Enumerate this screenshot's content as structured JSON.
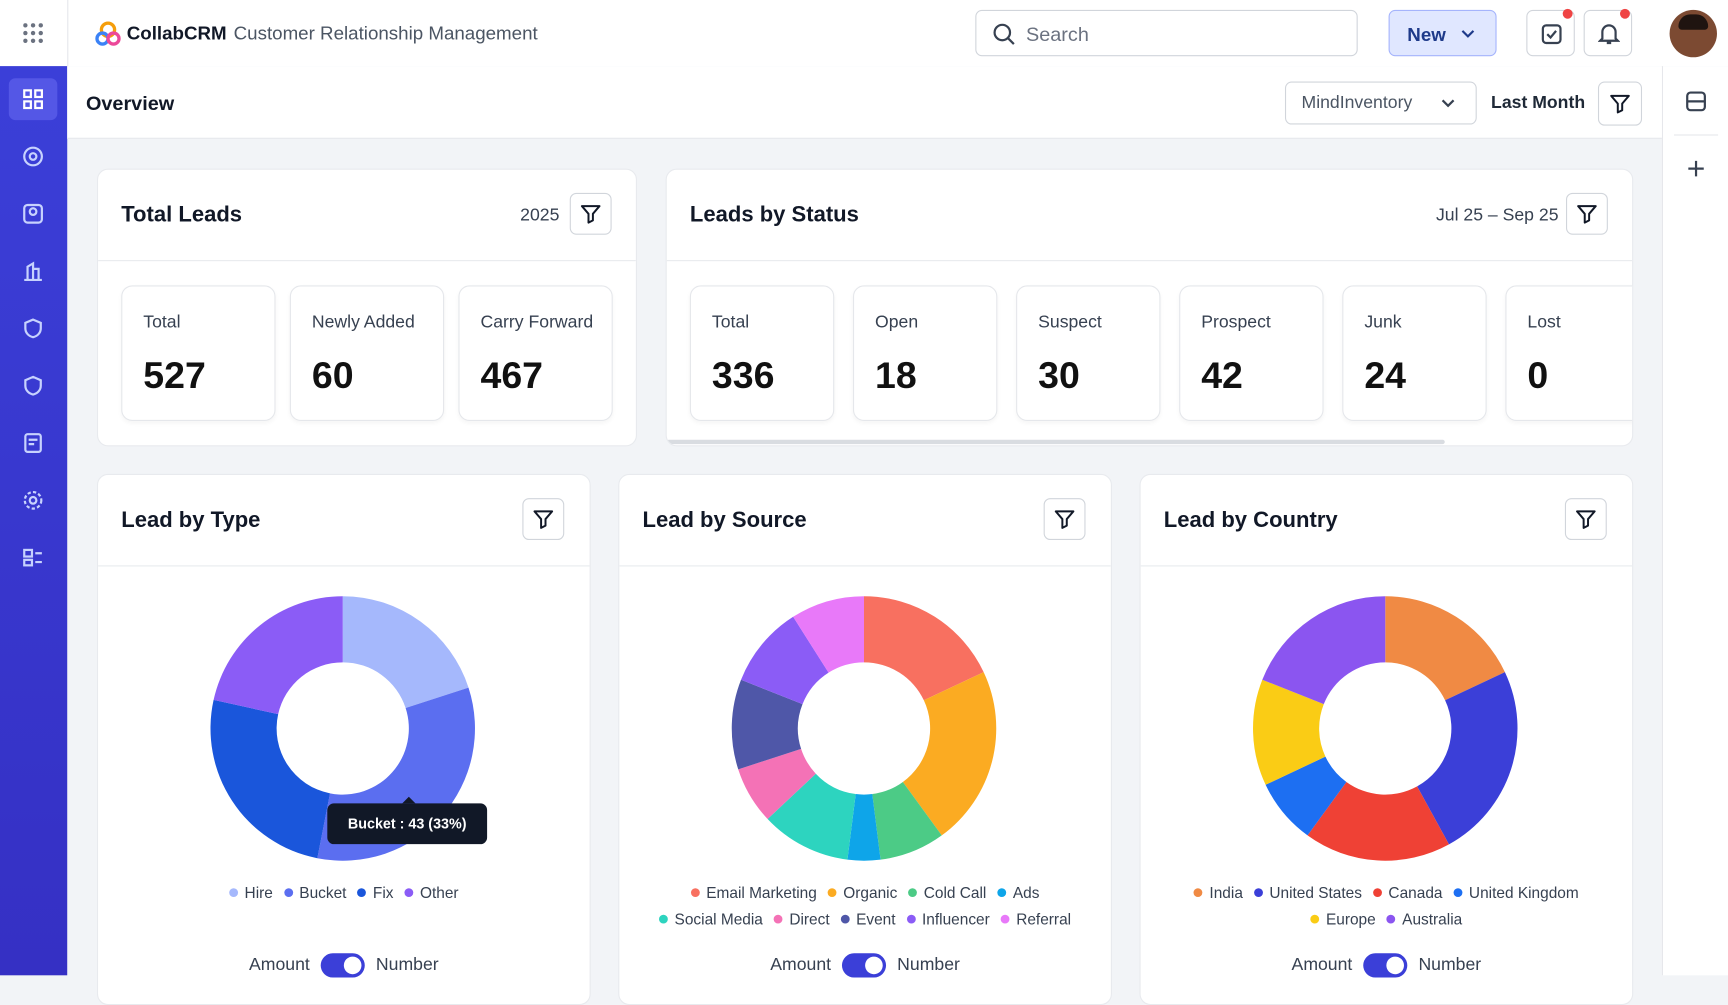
{
  "header": {
    "brand": "CollabCRM",
    "subtitle": "Customer Relationship Management",
    "search_placeholder": "Search",
    "new_button": "New"
  },
  "toolbar": {
    "title": "Overview",
    "company": "MindInventory",
    "period": "Last Month"
  },
  "total_leads": {
    "title": "Total Leads",
    "year": "2025",
    "stats": [
      {
        "label": "Total",
        "value": 527
      },
      {
        "label": "Newly Added",
        "value": 60
      },
      {
        "label": "Carry Forward",
        "value": 467
      }
    ]
  },
  "leads_by_status": {
    "title": "Leads by Status",
    "range": "Jul 25 – Sep 25",
    "stats": [
      {
        "label": "Total",
        "value": 336
      },
      {
        "label": "Open",
        "value": 18
      },
      {
        "label": "Suspect",
        "value": 30
      },
      {
        "label": "Prospect",
        "value": 42
      },
      {
        "label": "Junk",
        "value": 24
      },
      {
        "label": "Lost",
        "value": 0
      }
    ]
  },
  "chart_data": [
    {
      "type": "donut",
      "title": "Lead by Type",
      "categories": [
        "Hire",
        "Bucket",
        "Fix",
        "Other"
      ],
      "values": [
        26,
        43,
        33,
        28
      ],
      "colors": [
        "#a5b8fc",
        "#5b6ef0",
        "#1a56db",
        "#8b5cf6"
      ],
      "tooltip": "Bucket : 43 (33%)",
      "toggle_left": "Amount",
      "toggle_right": "Number"
    },
    {
      "type": "donut",
      "title": "Lead by Source",
      "categories": [
        "Email Marketing",
        "Organic",
        "Cold Call",
        "Ads",
        "Social Media",
        "Direct",
        "Event",
        "Influencer",
        "Referral"
      ],
      "values": [
        18,
        22,
        8,
        4,
        11,
        7,
        11,
        10,
        9
      ],
      "colors": [
        "#f87060",
        "#fbab22",
        "#4ccb86",
        "#0ea5e9",
        "#2dd4bf",
        "#f472b6",
        "#4f57a8",
        "#8b5cf6",
        "#e879f9"
      ],
      "toggle_left": "Amount",
      "toggle_right": "Number"
    },
    {
      "type": "donut",
      "title": "Lead by Country",
      "categories": [
        "India",
        "United States",
        "Canada",
        "United Kingdom",
        "Europe",
        "Australia"
      ],
      "values": [
        18,
        24,
        18,
        8,
        13,
        19
      ],
      "colors": [
        "#f08a44",
        "#3b3fd8",
        "#ef4135",
        "#1d6ff2",
        "#facc15",
        "#8b55f0"
      ],
      "toggle_left": "Amount",
      "toggle_right": "Number"
    }
  ]
}
